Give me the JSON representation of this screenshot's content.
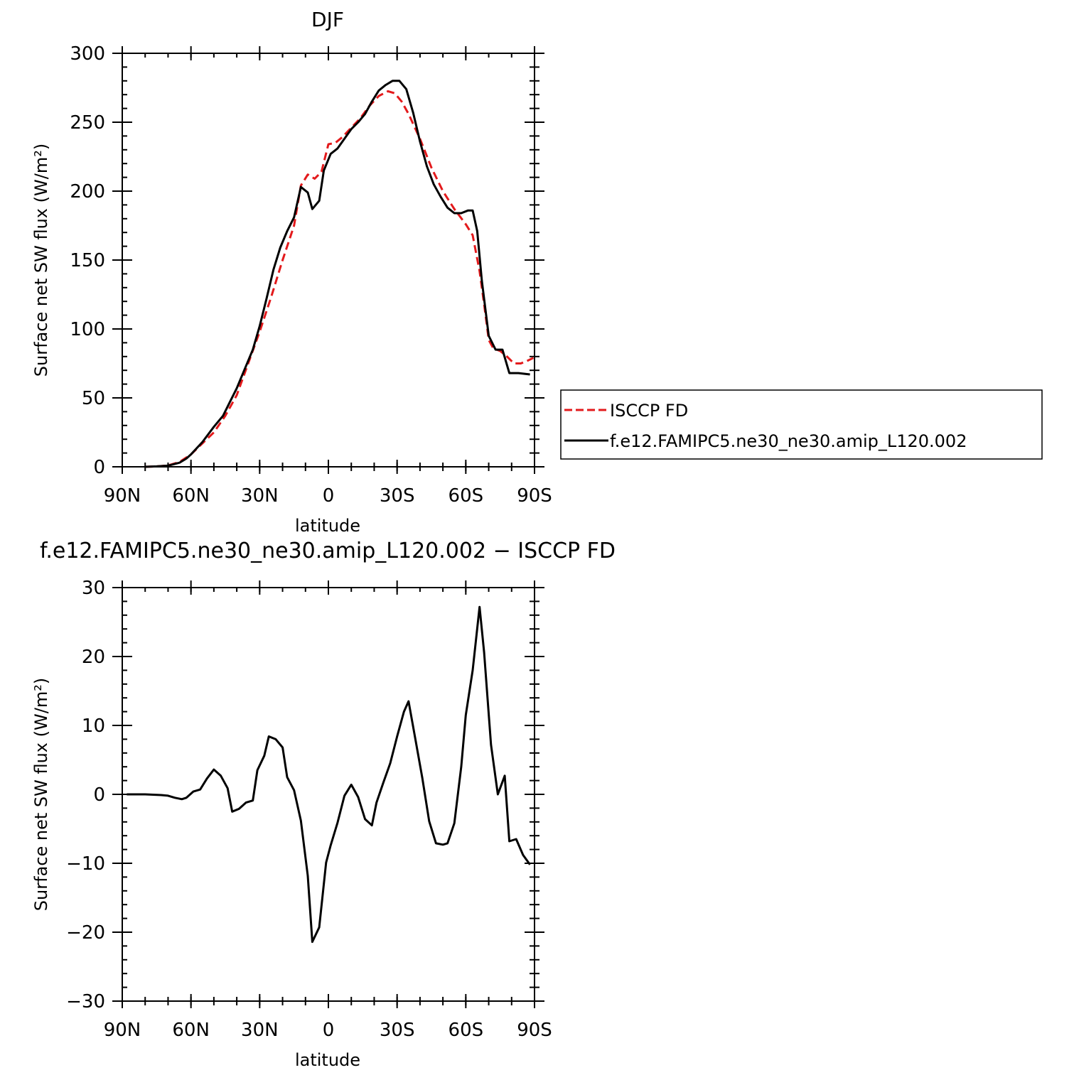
{
  "chart_data": [
    {
      "type": "line",
      "title": "DJF",
      "xlabel": "latitude",
      "ylabel": "Surface net SW flux (W/m²)",
      "ylim": [
        0,
        300
      ],
      "xlim": [
        -90,
        90
      ],
      "xticks": [
        {
          "value": -90,
          "label": "90N"
        },
        {
          "value": -60,
          "label": "60N"
        },
        {
          "value": -30,
          "label": "30N"
        },
        {
          "value": 0,
          "label": "0"
        },
        {
          "value": 30,
          "label": "30S"
        },
        {
          "value": 60,
          "label": "60S"
        },
        {
          "value": 90,
          "label": "90S"
        }
      ],
      "yticks": [
        0,
        50,
        100,
        150,
        200,
        250,
        300
      ],
      "legend_position": "right",
      "series": [
        {
          "name": "ISCCP FD",
          "color": "#e31a1c",
          "dash": "dashed",
          "points": [
            [
              -80,
              0
            ],
            [
              -75,
              0.3
            ],
            [
              -70,
              1
            ],
            [
              -65,
              3.5
            ],
            [
              -60,
              9
            ],
            [
              -55,
              17
            ],
            [
              -50,
              25
            ],
            [
              -45,
              37
            ],
            [
              -40,
              52
            ],
            [
              -35,
              75
            ],
            [
              -30,
              98
            ],
            [
              -25,
              123
            ],
            [
              -20,
              150
            ],
            [
              -15,
              175
            ],
            [
              -12,
              204
            ],
            [
              -9,
              212
            ],
            [
              -6,
              209
            ],
            [
              -3,
              214
            ],
            [
              0,
              234
            ],
            [
              3,
              235
            ],
            [
              6,
              239
            ],
            [
              10,
              246
            ],
            [
              14,
              253
            ],
            [
              18,
              262
            ],
            [
              22,
              269
            ],
            [
              26,
              272.5
            ],
            [
              29,
              271
            ],
            [
              32,
              265
            ],
            [
              35,
              256
            ],
            [
              40,
              238
            ],
            [
              45,
              217
            ],
            [
              50,
              200
            ],
            [
              55,
              187
            ],
            [
              60,
              176
            ],
            [
              63,
              168
            ],
            [
              66,
              142
            ],
            [
              68,
              118
            ],
            [
              70,
              92
            ],
            [
              72,
              86
            ],
            [
              75,
              84
            ],
            [
              78,
              80
            ],
            [
              81,
              75
            ],
            [
              84,
              75
            ],
            [
              87,
              77
            ],
            [
              89.5,
              79
            ]
          ]
        },
        {
          "name": "f.e12.FAMIPC5.ne30_ne30.amip_L120.002",
          "color": "#000000",
          "dash": "solid",
          "points": [
            [
              -80,
              0
            ],
            [
              -75,
              0.3
            ],
            [
              -70,
              0.8
            ],
            [
              -65,
              3
            ],
            [
              -62,
              6
            ],
            [
              -60,
              9
            ],
            [
              -55,
              18
            ],
            [
              -50,
              29
            ],
            [
              -46,
              37
            ],
            [
              -43,
              47
            ],
            [
              -40,
              57
            ],
            [
              -37,
              69
            ],
            [
              -33,
              85
            ],
            [
              -30,
              102
            ],
            [
              -27,
              122
            ],
            [
              -24,
              143
            ],
            [
              -21,
              159
            ],
            [
              -18,
              171
            ],
            [
              -15,
              181
            ],
            [
              -12,
              203
            ],
            [
              -9,
              199
            ],
            [
              -7,
              187
            ],
            [
              -4,
              193
            ],
            [
              -2,
              215
            ],
            [
              1,
              227
            ],
            [
              4,
              231
            ],
            [
              7,
              238
            ],
            [
              10,
              245
            ],
            [
              13,
              250
            ],
            [
              16,
              256
            ],
            [
              19,
              265
            ],
            [
              22,
              273
            ],
            [
              25,
              277
            ],
            [
              28,
              280
            ],
            [
              31,
              280
            ],
            [
              34,
              274
            ],
            [
              37,
              257
            ],
            [
              40,
              236
            ],
            [
              43,
              218
            ],
            [
              46,
              205
            ],
            [
              49,
              196
            ],
            [
              52,
              188
            ],
            [
              55,
              184
            ],
            [
              58,
              184
            ],
            [
              61,
              186
            ],
            [
              63,
              186
            ],
            [
              65,
              171
            ],
            [
              67,
              135
            ],
            [
              70,
              95
            ],
            [
              73,
              85
            ],
            [
              76,
              85
            ],
            [
              79,
              68
            ],
            [
              83,
              68
            ],
            [
              88,
              67
            ]
          ]
        }
      ]
    },
    {
      "type": "line",
      "title": "f.e12.FAMIPC5.ne30_ne30.amip_L120.002 − ISCCP FD",
      "xlabel": "latitude",
      "ylabel": "Surface net SW flux (W/m²)",
      "ylim": [
        -30,
        30
      ],
      "xlim": [
        -90,
        90
      ],
      "xticks": [
        {
          "value": -90,
          "label": "90N"
        },
        {
          "value": -60,
          "label": "60N"
        },
        {
          "value": -30,
          "label": "30N"
        },
        {
          "value": 0,
          "label": "0"
        },
        {
          "value": 30,
          "label": "30S"
        },
        {
          "value": 60,
          "label": "60S"
        },
        {
          "value": 90,
          "label": "90S"
        }
      ],
      "yticks": [
        -30,
        -20,
        -10,
        0,
        10,
        20,
        30
      ],
      "series": [
        {
          "color": "#000000",
          "dash": "solid",
          "points": [
            [
              -88,
              0
            ],
            [
              -80,
              0
            ],
            [
              -73,
              -0.1
            ],
            [
              -70,
              -0.2
            ],
            [
              -67,
              -0.5
            ],
            [
              -64,
              -0.7
            ],
            [
              -62,
              -0.5
            ],
            [
              -59,
              0.4
            ],
            [
              -56,
              0.7
            ],
            [
              -53,
              2.3
            ],
            [
              -50,
              3.6
            ],
            [
              -47,
              2.7
            ],
            [
              -44,
              0.9
            ],
            [
              -42,
              -2.5
            ],
            [
              -39,
              -2.1
            ],
            [
              -36,
              -1.2
            ],
            [
              -33,
              -0.9
            ],
            [
              -31,
              3.5
            ],
            [
              -28,
              5.6
            ],
            [
              -26,
              8.4
            ],
            [
              -23,
              8
            ],
            [
              -20,
              6.8
            ],
            [
              -18,
              2.5
            ],
            [
              -15,
              0.6
            ],
            [
              -12,
              -3.8
            ],
            [
              -9,
              -11.8
            ],
            [
              -7,
              -21.4
            ],
            [
              -4,
              -19.3
            ],
            [
              -1,
              -9.9
            ],
            [
              1,
              -7.4
            ],
            [
              4,
              -4.1
            ],
            [
              7,
              -0.2
            ],
            [
              10,
              1.4
            ],
            [
              13,
              -0.4
            ],
            [
              16,
              -3.6
            ],
            [
              19,
              -4.5
            ],
            [
              21,
              -1.2
            ],
            [
              24,
              1.7
            ],
            [
              27,
              4.5
            ],
            [
              30,
              8.4
            ],
            [
              33,
              12
            ],
            [
              35,
              13.5
            ],
            [
              38,
              8
            ],
            [
              41,
              2.4
            ],
            [
              44,
              -3.9
            ],
            [
              47,
              -7.1
            ],
            [
              50,
              -7.3
            ],
            [
              52,
              -7.1
            ],
            [
              55,
              -4.2
            ],
            [
              58,
              4
            ],
            [
              60,
              11.5
            ],
            [
              63,
              18
            ],
            [
              66,
              27.2
            ],
            [
              68,
              20.6
            ],
            [
              71,
              7.2
            ],
            [
              74,
              0
            ],
            [
              77,
              2.7
            ],
            [
              79,
              -6.8
            ],
            [
              82,
              -6.5
            ],
            [
              85,
              -8.8
            ],
            [
              88,
              -10.2
            ]
          ]
        }
      ]
    }
  ]
}
